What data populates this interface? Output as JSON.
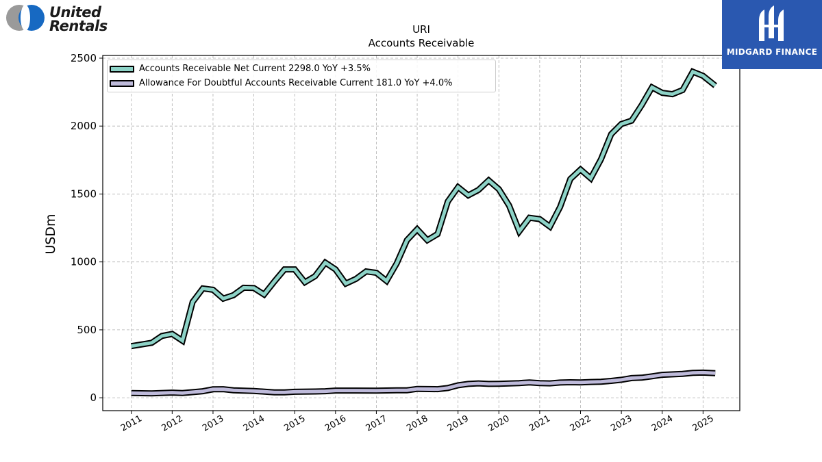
{
  "brand": {
    "name": "United Rentals",
    "line1": "United",
    "line2": "Rentals"
  },
  "partner": {
    "name": "MIDGARD FINANCE"
  },
  "chart_data": {
    "type": "line",
    "title": "URI",
    "subtitle": "Accounts Receivable",
    "xlabel": "",
    "ylabel": "USDm",
    "xlim": [
      2010.3,
      2025.9
    ],
    "ylim": [
      -95,
      2520
    ],
    "yticks": [
      0,
      500,
      1000,
      1500,
      2000,
      2500
    ],
    "xticks": [
      2011,
      2012,
      2013,
      2014,
      2015,
      2016,
      2017,
      2018,
      2019,
      2020,
      2021,
      2022,
      2023,
      2024,
      2025
    ],
    "grid": true,
    "legend_position": "top-left",
    "colors": {
      "series1": "#8dd3c7",
      "series2": "#bebada",
      "outline": "#000000",
      "grid": "#b0b0b0"
    },
    "series": [
      {
        "name": "Accounts Receivable Net Current",
        "legend": "Accounts Receivable Net Current  2298.0 YoY +3.5%",
        "color": "#8dd3c7",
        "points": [
          [
            2011.0,
            380
          ],
          [
            2011.5,
            405
          ],
          [
            2011.75,
            455
          ],
          [
            2012.0,
            470
          ],
          [
            2012.25,
            420
          ],
          [
            2012.5,
            705
          ],
          [
            2012.75,
            805
          ],
          [
            2013.0,
            795
          ],
          [
            2013.25,
            730
          ],
          [
            2013.5,
            755
          ],
          [
            2013.75,
            810
          ],
          [
            2014.0,
            808
          ],
          [
            2014.25,
            760
          ],
          [
            2014.5,
            855
          ],
          [
            2014.75,
            945
          ],
          [
            2015.0,
            945
          ],
          [
            2015.25,
            850
          ],
          [
            2015.5,
            895
          ],
          [
            2015.75,
            995
          ],
          [
            2016.0,
            945
          ],
          [
            2016.25,
            840
          ],
          [
            2016.5,
            875
          ],
          [
            2016.75,
            930
          ],
          [
            2017.0,
            920
          ],
          [
            2017.25,
            860
          ],
          [
            2017.5,
            990
          ],
          [
            2017.75,
            1160
          ],
          [
            2018.0,
            1240
          ],
          [
            2018.25,
            1160
          ],
          [
            2018.5,
            1205
          ],
          [
            2018.75,
            1445
          ],
          [
            2019.0,
            1550
          ],
          [
            2019.25,
            1490
          ],
          [
            2019.5,
            1530
          ],
          [
            2019.75,
            1600
          ],
          [
            2020.0,
            1535
          ],
          [
            2020.25,
            1415
          ],
          [
            2020.5,
            1225
          ],
          [
            2020.75,
            1325
          ],
          [
            2021.0,
            1315
          ],
          [
            2021.25,
            1260
          ],
          [
            2021.5,
            1405
          ],
          [
            2021.75,
            1610
          ],
          [
            2022.0,
            1680
          ],
          [
            2022.25,
            1615
          ],
          [
            2022.5,
            1755
          ],
          [
            2022.75,
            1940
          ],
          [
            2023.0,
            2015
          ],
          [
            2023.25,
            2040
          ],
          [
            2023.5,
            2155
          ],
          [
            2023.75,
            2285
          ],
          [
            2024.0,
            2245
          ],
          [
            2024.25,
            2235
          ],
          [
            2024.5,
            2265
          ],
          [
            2024.75,
            2400
          ],
          [
            2025.0,
            2370
          ],
          [
            2025.3,
            2298
          ]
        ]
      },
      {
        "name": "Allowance For Doubtful Accounts Receivable Current",
        "legend": "Allowance For Doubtful Accounts Receivable Current  181.0 YoY +4.0%",
        "color": "#bebada",
        "points": [
          [
            2011.0,
            35
          ],
          [
            2011.5,
            32
          ],
          [
            2012.0,
            38
          ],
          [
            2012.25,
            35
          ],
          [
            2012.75,
            48
          ],
          [
            2013.0,
            62
          ],
          [
            2013.25,
            63
          ],
          [
            2013.5,
            55
          ],
          [
            2014.0,
            50
          ],
          [
            2014.5,
            40
          ],
          [
            2014.75,
            40
          ],
          [
            2015.0,
            44
          ],
          [
            2015.5,
            46
          ],
          [
            2015.75,
            48
          ],
          [
            2016.0,
            53
          ],
          [
            2016.5,
            53
          ],
          [
            2017.0,
            52
          ],
          [
            2017.5,
            55
          ],
          [
            2017.75,
            55
          ],
          [
            2018.0,
            65
          ],
          [
            2018.5,
            63
          ],
          [
            2018.75,
            72
          ],
          [
            2019.0,
            92
          ],
          [
            2019.25,
            102
          ],
          [
            2019.5,
            106
          ],
          [
            2019.75,
            102
          ],
          [
            2020.0,
            103
          ],
          [
            2020.5,
            108
          ],
          [
            2020.75,
            113
          ],
          [
            2021.0,
            108
          ],
          [
            2021.25,
            106
          ],
          [
            2021.5,
            112
          ],
          [
            2021.75,
            114
          ],
          [
            2022.0,
            113
          ],
          [
            2022.25,
            116
          ],
          [
            2022.5,
            118
          ],
          [
            2022.75,
            124
          ],
          [
            2023.0,
            132
          ],
          [
            2023.25,
            145
          ],
          [
            2023.5,
            148
          ],
          [
            2023.75,
            158
          ],
          [
            2024.0,
            169
          ],
          [
            2024.5,
            176
          ],
          [
            2024.75,
            183
          ],
          [
            2025.0,
            185
          ],
          [
            2025.3,
            181
          ]
        ]
      }
    ]
  }
}
